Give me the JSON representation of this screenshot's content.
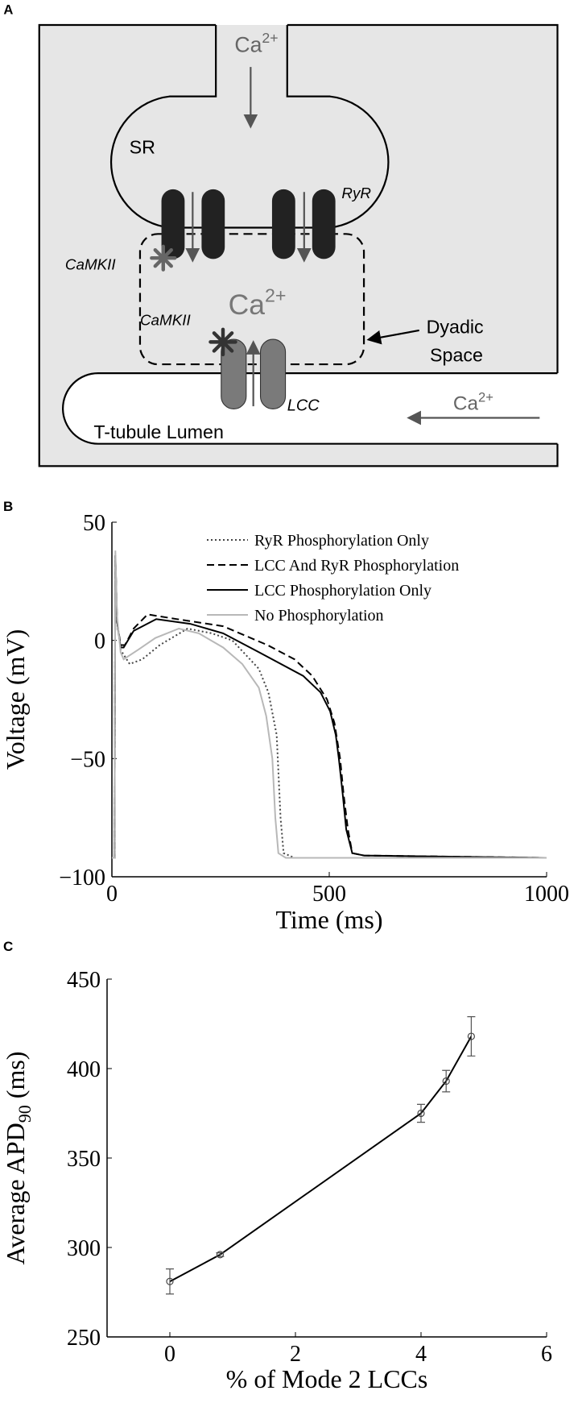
{
  "diagram": {
    "panel_label": "A",
    "ca_top": {
      "text": "Ca",
      "sup": "2+"
    },
    "sr": "SR",
    "ryr": "RyR",
    "camkii_upper": "CaMKII",
    "ca_dyadic": {
      "text": "Ca",
      "sup": "2+"
    },
    "camkii_lower": "CaMKII",
    "dyadic_space": [
      "Dyadic",
      "Space"
    ],
    "lcc": "LCC",
    "ca_lumen": {
      "text": "Ca",
      "sup": "2+"
    },
    "lumen": "T-tubule Lumen"
  },
  "chart_data": [
    {
      "type": "line",
      "panel_label": "B",
      "x_label": "Time (ms)",
      "y_label": "Voltage (mV)",
      "xlim": [
        0,
        1000
      ],
      "ylim": [
        -100,
        50
      ],
      "xticks": [
        0,
        500,
        1000
      ],
      "yticks": [
        {
          "value": -100,
          "label": "−100"
        },
        {
          "value": -50,
          "label": "−50"
        },
        0,
        50
      ],
      "legend": "upper right",
      "series": [
        {
          "name": "RyR Phosphorylation Only",
          "color": "#444444",
          "style": "dotted",
          "x": [
            0,
            6,
            8,
            12,
            20,
            41,
            70,
            110,
            174,
            230,
            277,
            338,
            360,
            379,
            388,
            395,
            420,
            1000
          ],
          "values": [
            -92,
            -92,
            36,
            8,
            -4,
            -10,
            -8,
            -2,
            5,
            3,
            0,
            -12,
            -22,
            -40,
            -75,
            -90,
            -92,
            -92
          ]
        },
        {
          "name": "LCC And RyR Phosphorylation",
          "color": "#000000",
          "style": "dashed",
          "x": [
            0,
            6,
            8,
            12,
            20,
            30,
            50,
            82,
            150,
            256,
            358,
            420,
            461,
            495,
            512,
            525,
            533,
            543,
            553,
            580,
            1000
          ],
          "values": [
            -92,
            -92,
            36,
            8,
            -2,
            -2,
            5,
            11,
            9,
            6,
            -2,
            -8,
            -15,
            -25,
            -35,
            -50,
            -65,
            -80,
            -90,
            -91,
            -92
          ]
        },
        {
          "name": "LCC Phosphorylation Only",
          "color": "#000000",
          "style": "solid",
          "x": [
            0,
            6,
            8,
            12,
            20,
            27,
            50,
            102,
            180,
            256,
            338,
            440,
            480,
            502,
            515,
            522,
            531,
            539,
            553,
            580,
            1000
          ],
          "values": [
            -92,
            -92,
            36,
            8,
            -3,
            -3,
            4,
            9,
            7,
            3,
            -5,
            -15,
            -22,
            -30,
            -40,
            -50,
            -65,
            -80,
            -90,
            -91,
            -92
          ]
        },
        {
          "name": "No Phosphorylation",
          "color": "#b8b8b8",
          "style": "solid",
          "x": [
            0,
            6,
            8,
            12,
            20,
            27,
            60,
            100,
            154,
            200,
            256,
            300,
            338,
            355,
            369,
            376,
            383,
            400,
            1000
          ],
          "values": [
            -92,
            -92,
            38,
            10,
            -5,
            -8,
            -4,
            1,
            5,
            3,
            -3,
            -10,
            -20,
            -32,
            -50,
            -75,
            -90,
            -92,
            -92
          ]
        }
      ]
    },
    {
      "type": "line",
      "panel_label": "C",
      "x_label": "% of Mode 2 LCCs",
      "y_label": {
        "text": "Average APD",
        "sub": "90",
        "suffix": " (ms)"
      },
      "xlim": [
        -1,
        6
      ],
      "ylim": [
        250,
        450
      ],
      "xticks": [
        0,
        2,
        4,
        6
      ],
      "yticks": [
        250,
        300,
        350,
        400,
        450
      ],
      "color": "#000000",
      "marker": "circle",
      "x": [
        0,
        0.8,
        4,
        4.4,
        4.8
      ],
      "values": [
        281,
        296,
        375,
        393,
        418
      ],
      "errors": [
        7,
        1,
        5,
        6,
        11
      ]
    }
  ]
}
